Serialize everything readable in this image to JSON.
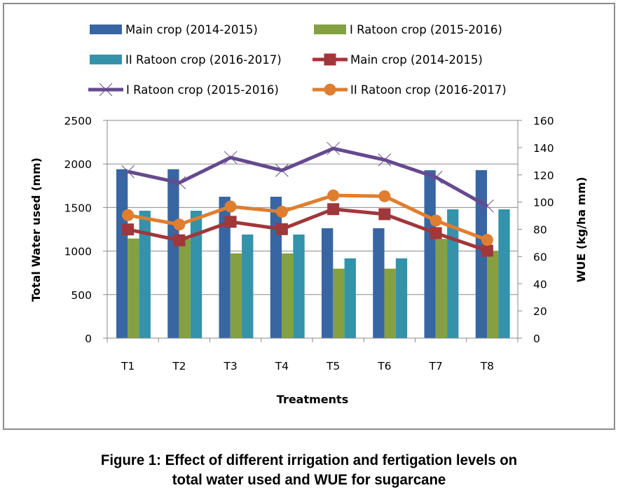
{
  "caption": {
    "line1": "Figure 1: Effect of different irrigation and fertigation levels on",
    "line2": "total water used and WUE for sugarcane"
  },
  "chart_data": {
    "type": "bar+line",
    "title": "",
    "xlabel": "Treatments",
    "ylabel": "Total Water used (mm)",
    "y2label": "WUE (kg/ha mm)",
    "categories": [
      "T1",
      "T2",
      "T3",
      "T4",
      "T5",
      "T6",
      "T7",
      "T8"
    ],
    "ylim": [
      0,
      2500
    ],
    "yticks": [
      0,
      500,
      1000,
      1500,
      2000,
      2500
    ],
    "y2lim": [
      0,
      160
    ],
    "y2ticks": [
      0,
      20,
      40,
      60,
      80,
      100,
      120,
      140,
      160
    ],
    "grid": true,
    "legend_position": "top",
    "bar_series": [
      {
        "name": "Main crop (2014-2015)",
        "color": "#3866a3",
        "axis": "left",
        "values": [
          1940,
          1940,
          1624,
          1624,
          1262,
          1262,
          1928,
          1929
        ]
      },
      {
        "name": "I Ratoon crop (2015-2016)",
        "color": "#84a040",
        "axis": "left",
        "values": [
          1144,
          1140,
          973,
          973,
          798,
          798,
          1140,
          1000
        ]
      },
      {
        "name": "II Ratoon crop (2016-2017)",
        "color": "#3492aa",
        "axis": "left",
        "values": [
          1463,
          1463,
          1190,
          1190,
          916,
          916,
          1479,
          1479
        ]
      }
    ],
    "line_series": [
      {
        "name": "Main crop (2014-2015)",
        "color": "#a0373a",
        "marker": "square",
        "axis": "right",
        "values": [
          79.9,
          71.9,
          85.5,
          80.1,
          94.8,
          91.1,
          77.2,
          64.3
        ]
      },
      {
        "name": "I Ratoon crop (2015-2016)",
        "color": "#654a8f",
        "marker": "x",
        "axis": "right",
        "values": [
          122.4,
          114.2,
          132.7,
          123.3,
          139.4,
          131.0,
          118.2,
          97.1
        ]
      },
      {
        "name": "II Ratoon crop (2016-2017)",
        "color": "#e07e30",
        "marker": "circle",
        "axis": "right",
        "values": [
          90.4,
          83.5,
          96.7,
          92.9,
          104.9,
          104.3,
          86.4,
          72.2
        ]
      }
    ],
    "legend": [
      {
        "label": "Main crop (2014-2015)",
        "kind": "bar",
        "series": 0
      },
      {
        "label": "I Ratoon crop (2015-2016)",
        "kind": "bar",
        "series": 1
      },
      {
        "label": "II Ratoon crop (2016-2017)",
        "kind": "bar",
        "series": 2
      },
      {
        "label": "Main crop (2014-2015)",
        "kind": "line",
        "series": 0
      },
      {
        "label": "I Ratoon crop (2015-2016)",
        "kind": "line",
        "series": 1
      },
      {
        "label": "II Ratoon crop (2016-2017)",
        "kind": "line",
        "series": 2
      }
    ]
  }
}
